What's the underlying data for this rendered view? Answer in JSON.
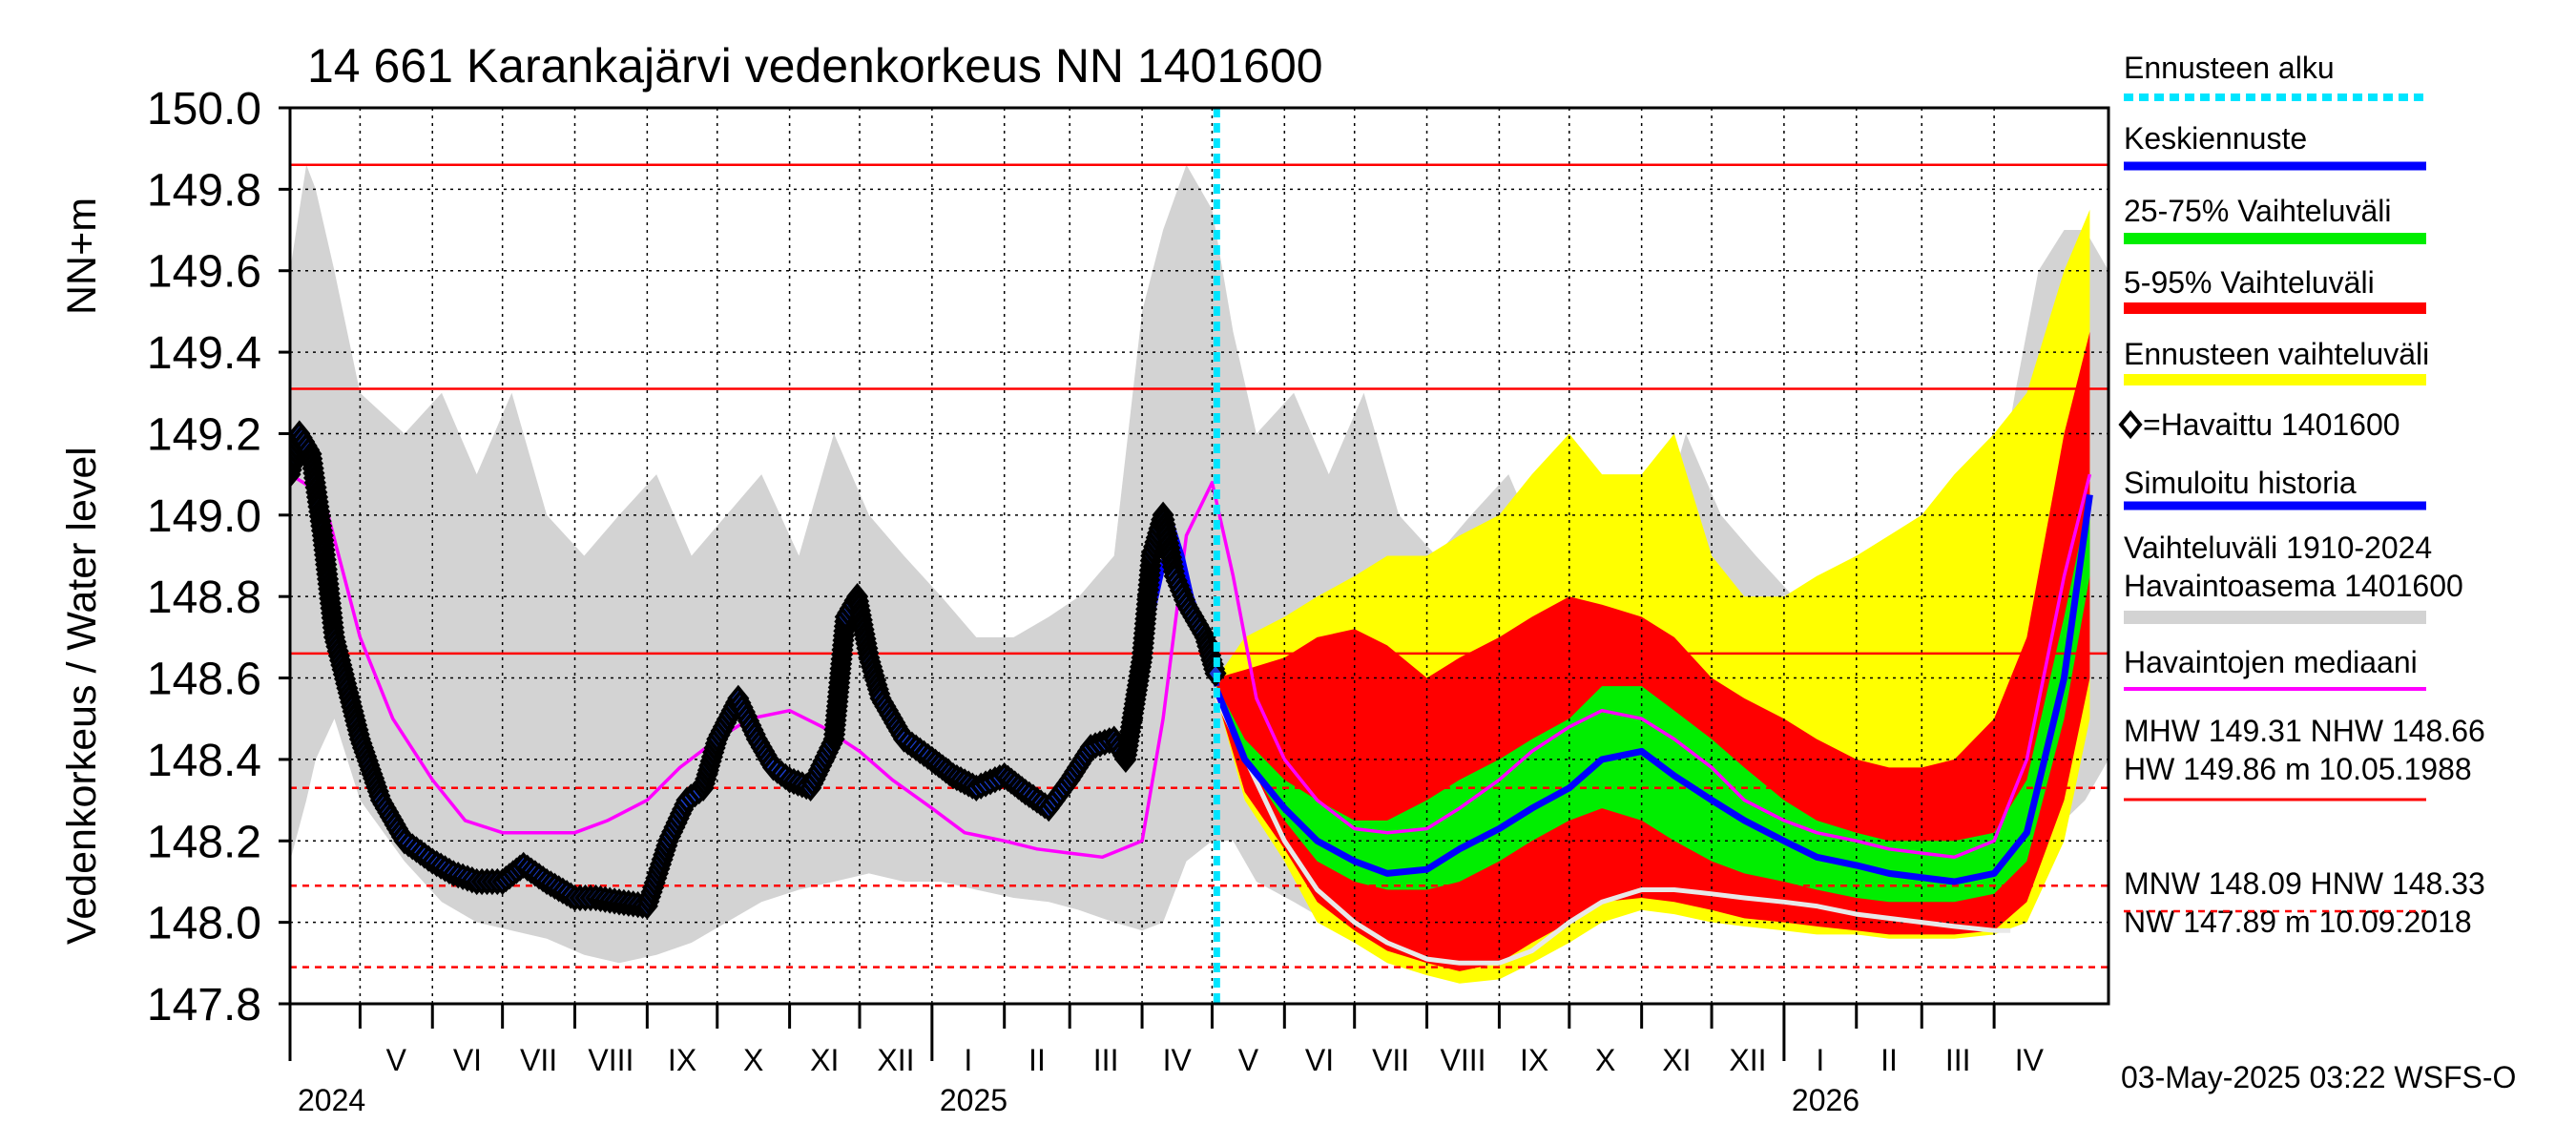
{
  "title": "14 661 Karankajärvi vedenkorkeus NN 1401600",
  "unit_label": "NN+m",
  "ylabel": "Vedenkorkeus / Water level",
  "footer": "03-May-2025 03:22 WSFS-O",
  "colors": {
    "history": "#d3d3d3",
    "p5_95": "#ff0000",
    "p25_75": "#00ee00",
    "forecast_range": "#ffff00",
    "mean": "#0000ff",
    "median": "#ff00ff",
    "forecast_start": "#00e5ff",
    "observed": "#000000",
    "reference": "#ff0000"
  },
  "legend": [
    {
      "id": "forecast-start",
      "label": "Ennusteen alku"
    },
    {
      "id": "mean-forecast",
      "label": "Keskiennuste"
    },
    {
      "id": "range-25-75",
      "label": "25-75% Vaihteluväli"
    },
    {
      "id": "range-5-95",
      "label": "5-95% Vaihteluväli"
    },
    {
      "id": "forecast-range",
      "label": "Ennusteen vaihteluväli"
    },
    {
      "id": "observed",
      "label": "=Havaittu 1401600"
    },
    {
      "id": "simulated",
      "label": "Simuloitu historia"
    },
    {
      "id": "history-range",
      "label": "Vaihteluväli 1910-2024",
      "label2": " Havaintoasema 1401600"
    },
    {
      "id": "median",
      "label": "Havaintojen mediaani"
    },
    {
      "id": "stats1",
      "label": "MHW 149.31 NHW 148.66",
      "label2": "HW 149.86 m 10.05.1988"
    },
    {
      "id": "stats2",
      "label": "MNW 148.09 HNW 148.33",
      "label2": "NW 147.89 m 10.09.2018"
    }
  ],
  "chart_data": {
    "type": "area",
    "ylim": [
      147.8,
      150.0
    ],
    "yticks": [
      147.8,
      148.0,
      148.2,
      148.4,
      148.6,
      148.8,
      149.0,
      149.2,
      149.4,
      149.6,
      149.8,
      150.0
    ],
    "ytick_labels": [
      "147.8",
      "148.0",
      "148.2",
      "148.4",
      "148.6",
      "148.8",
      "149.0",
      "149.2",
      "149.4",
      "149.6",
      "149.8",
      "150.0"
    ],
    "xlim": [
      "2024-04-01",
      "2026-05-20"
    ],
    "months": [
      "V",
      "VI",
      "VII",
      "VIII",
      "IX",
      "X",
      "XI",
      "XII",
      "I",
      "II",
      "III",
      "IV",
      "V",
      "VI",
      "VII",
      "VIII",
      "IX",
      "X",
      "XI",
      "XII",
      "I",
      "II",
      "III",
      "IV"
    ],
    "years": [
      "2024",
      "2025",
      "2026"
    ],
    "forecast_start": "2025-05-03",
    "reference_lines": {
      "solid": [
        149.86,
        149.31,
        148.66
      ],
      "dashed": [
        148.33,
        148.09,
        147.89
      ]
    },
    "history_range": {
      "dates": [
        "2024-04-01",
        "2024-04-08",
        "2024-04-12",
        "2024-04-20",
        "2024-05-01",
        "2024-05-20",
        "2024-06-05",
        "2024-06-20",
        "2024-07-05",
        "2024-07-20",
        "2024-08-05",
        "2024-08-20",
        "2024-09-05",
        "2024-09-20",
        "2024-10-05",
        "2024-10-20",
        "2024-11-05",
        "2024-11-20",
        "2024-12-05",
        "2024-12-20",
        "2025-01-05",
        "2025-01-20",
        "2025-02-05",
        "2025-02-20",
        "2025-03-05",
        "2025-03-20",
        "2025-04-01",
        "2025-04-10",
        "2025-04-20",
        "2025-05-01",
        "2025-05-10",
        "2025-05-20",
        "2025-06-05",
        "2025-06-20",
        "2025-07-05",
        "2025-07-20",
        "2025-08-05",
        "2025-08-20",
        "2025-09-05",
        "2025-09-20",
        "2025-10-05",
        "2025-10-20",
        "2025-11-05",
        "2025-11-20",
        "2025-12-05",
        "2025-12-20",
        "2026-01-05",
        "2026-01-20",
        "2026-02-05",
        "2026-02-20",
        "2026-03-05",
        "2026-03-20",
        "2026-04-01",
        "2026-04-10",
        "2026-04-20",
        "2026-05-01",
        "2026-05-10",
        "2026-05-20"
      ],
      "low": [
        148.15,
        148.3,
        148.4,
        148.5,
        148.3,
        148.15,
        148.05,
        148.0,
        147.98,
        147.96,
        147.92,
        147.9,
        147.92,
        147.95,
        148.0,
        148.05,
        148.08,
        148.1,
        148.12,
        148.1,
        148.1,
        148.08,
        148.06,
        148.05,
        148.03,
        148.0,
        147.98,
        148.0,
        148.15,
        148.2,
        148.2,
        148.1,
        148.05,
        148.0,
        147.98,
        147.96,
        147.92,
        147.9,
        147.92,
        147.95,
        148.0,
        148.05,
        148.08,
        148.1,
        148.12,
        148.1,
        148.1,
        148.08,
        148.06,
        148.05,
        148.03,
        148.0,
        147.98,
        148.0,
        148.15,
        148.25,
        148.3,
        148.4
      ],
      "high": [
        149.6,
        149.86,
        149.8,
        149.6,
        149.3,
        149.2,
        149.3,
        149.1,
        149.3,
        149.0,
        148.9,
        149.0,
        149.1,
        148.9,
        149.0,
        149.1,
        148.9,
        149.2,
        149.0,
        148.9,
        148.8,
        148.7,
        148.7,
        148.75,
        148.8,
        148.9,
        149.5,
        149.7,
        149.86,
        149.75,
        149.45,
        149.2,
        149.3,
        149.1,
        149.3,
        149.0,
        148.9,
        149.0,
        149.1,
        148.9,
        149.0,
        149.1,
        148.9,
        149.2,
        149.0,
        148.9,
        148.8,
        148.7,
        148.7,
        148.75,
        148.8,
        148.9,
        149.0,
        149.3,
        149.6,
        149.7,
        149.7,
        149.6
      ]
    },
    "forecast_range": {
      "dates": [
        "2025-05-03",
        "2025-05-15",
        "2025-06-01",
        "2025-06-15",
        "2025-07-01",
        "2025-07-15",
        "2025-08-01",
        "2025-08-15",
        "2025-09-01",
        "2025-09-15",
        "2025-10-01",
        "2025-10-15",
        "2025-11-01",
        "2025-11-15",
        "2025-12-01",
        "2025-12-15",
        "2026-01-01",
        "2026-01-15",
        "2026-02-01",
        "2026-02-15",
        "2026-03-01",
        "2026-03-15",
        "2026-04-01",
        "2026-04-15",
        "2026-05-01",
        "2026-05-12"
      ],
      "low": [
        148.55,
        148.3,
        148.15,
        148.0,
        147.95,
        147.9,
        147.87,
        147.85,
        147.86,
        147.9,
        147.95,
        148.0,
        148.03,
        148.02,
        148.0,
        147.99,
        147.98,
        147.97,
        147.97,
        147.96,
        147.96,
        147.96,
        147.97,
        148.0,
        148.2,
        148.5
      ],
      "high": [
        148.6,
        148.7,
        148.75,
        148.8,
        148.85,
        148.9,
        148.9,
        148.95,
        149.0,
        149.1,
        149.2,
        149.1,
        149.1,
        149.2,
        148.9,
        148.8,
        148.8,
        148.85,
        148.9,
        148.95,
        149.0,
        149.1,
        149.2,
        149.3,
        149.6,
        149.75
      ]
    },
    "range_5_95": {
      "dates": [
        "2025-05-03",
        "2025-05-15",
        "2025-06-01",
        "2025-06-15",
        "2025-07-01",
        "2025-07-15",
        "2025-08-01",
        "2025-08-15",
        "2025-09-01",
        "2025-09-15",
        "2025-10-01",
        "2025-10-15",
        "2025-11-01",
        "2025-11-15",
        "2025-12-01",
        "2025-12-15",
        "2026-01-01",
        "2026-01-15",
        "2026-02-01",
        "2026-02-15",
        "2026-03-01",
        "2026-03-15",
        "2026-04-01",
        "2026-04-15",
        "2026-05-01",
        "2026-05-12"
      ],
      "low": [
        148.55,
        148.32,
        148.18,
        148.05,
        147.98,
        147.93,
        147.9,
        147.88,
        147.9,
        147.95,
        148.0,
        148.05,
        148.06,
        148.05,
        148.03,
        148.01,
        148.0,
        147.99,
        147.98,
        147.97,
        147.97,
        147.97,
        147.98,
        148.05,
        148.3,
        148.6
      ],
      "high": [
        148.6,
        148.62,
        148.65,
        148.7,
        148.72,
        148.68,
        148.6,
        148.65,
        148.7,
        148.75,
        148.8,
        148.78,
        148.75,
        148.7,
        148.6,
        148.55,
        148.5,
        148.45,
        148.4,
        148.38,
        148.38,
        148.4,
        148.5,
        148.7,
        149.2,
        149.45
      ]
    },
    "range_25_75": {
      "dates": [
        "2025-05-03",
        "2025-05-15",
        "2025-06-01",
        "2025-06-15",
        "2025-07-01",
        "2025-07-15",
        "2025-08-01",
        "2025-08-15",
        "2025-09-01",
        "2025-09-15",
        "2025-10-01",
        "2025-10-15",
        "2025-11-01",
        "2025-11-15",
        "2025-12-01",
        "2025-12-15",
        "2026-01-01",
        "2026-01-15",
        "2026-02-01",
        "2026-02-15",
        "2026-03-01",
        "2026-03-15",
        "2026-04-01",
        "2026-04-15",
        "2026-05-01",
        "2026-05-12"
      ],
      "low": [
        148.56,
        148.4,
        148.25,
        148.15,
        148.1,
        148.08,
        148.08,
        148.1,
        148.15,
        148.2,
        148.25,
        148.28,
        148.25,
        148.2,
        148.15,
        148.12,
        148.1,
        148.08,
        148.06,
        148.05,
        148.05,
        148.05,
        148.07,
        148.15,
        148.5,
        148.85
      ],
      "high": [
        148.58,
        148.45,
        148.35,
        148.3,
        148.25,
        148.25,
        148.3,
        148.35,
        148.4,
        148.45,
        148.5,
        148.58,
        148.58,
        148.52,
        148.45,
        148.38,
        148.3,
        148.25,
        148.22,
        148.2,
        148.2,
        148.2,
        148.22,
        148.35,
        148.75,
        149.05
      ]
    },
    "mean_forecast": {
      "dates": [
        "2025-05-03",
        "2025-05-15",
        "2025-06-01",
        "2025-06-15",
        "2025-07-01",
        "2025-07-15",
        "2025-08-01",
        "2025-08-15",
        "2025-09-01",
        "2025-09-15",
        "2025-10-01",
        "2025-10-15",
        "2025-11-01",
        "2025-11-15",
        "2025-12-01",
        "2025-12-15",
        "2026-01-01",
        "2026-01-15",
        "2026-02-01",
        "2026-02-15",
        "2026-03-01",
        "2026-03-15",
        "2026-04-01",
        "2026-04-15",
        "2026-05-01",
        "2026-05-12"
      ],
      "values": [
        148.57,
        148.4,
        148.28,
        148.2,
        148.15,
        148.12,
        148.13,
        148.18,
        148.23,
        148.28,
        148.33,
        148.4,
        148.42,
        148.36,
        148.3,
        148.25,
        148.2,
        148.16,
        148.14,
        148.12,
        148.11,
        148.1,
        148.12,
        148.22,
        148.6,
        149.05
      ]
    },
    "median": {
      "dates": [
        "2024-04-01",
        "2024-04-15",
        "2024-05-01",
        "2024-05-15",
        "2024-06-01",
        "2024-06-15",
        "2024-07-01",
        "2024-07-15",
        "2024-08-01",
        "2024-08-15",
        "2024-09-01",
        "2024-09-15",
        "2024-10-01",
        "2024-10-15",
        "2024-11-01",
        "2024-11-15",
        "2024-12-01",
        "2024-12-15",
        "2025-01-01",
        "2025-01-15",
        "2025-02-01",
        "2025-02-15",
        "2025-03-01",
        "2025-03-15",
        "2025-04-01",
        "2025-04-10",
        "2025-04-20",
        "2025-05-01",
        "2025-05-10",
        "2025-05-20",
        "2025-06-01",
        "2025-06-15",
        "2025-07-01",
        "2025-07-15",
        "2025-08-01",
        "2025-08-15",
        "2025-09-01",
        "2025-09-15",
        "2025-10-01",
        "2025-10-15",
        "2025-11-01",
        "2025-11-15",
        "2025-12-01",
        "2025-12-15",
        "2026-01-01",
        "2026-01-15",
        "2026-02-01",
        "2026-02-15",
        "2026-03-01",
        "2026-03-15",
        "2026-04-01",
        "2026-04-15",
        "2026-05-01",
        "2026-05-12"
      ],
      "values": [
        149.1,
        149.05,
        148.7,
        148.5,
        148.35,
        148.25,
        148.22,
        148.22,
        148.22,
        148.25,
        148.3,
        148.38,
        148.45,
        148.5,
        148.52,
        148.48,
        148.42,
        148.35,
        148.28,
        148.22,
        148.2,
        148.18,
        148.17,
        148.16,
        148.2,
        148.5,
        148.95,
        149.08,
        148.85,
        148.55,
        148.4,
        148.3,
        148.23,
        148.22,
        148.23,
        148.28,
        148.35,
        148.42,
        148.48,
        148.52,
        148.5,
        148.45,
        148.38,
        148.3,
        148.25,
        148.22,
        148.2,
        148.18,
        148.17,
        148.16,
        148.2,
        148.4,
        148.85,
        149.1
      ]
    },
    "simulated": {
      "dates": [
        "2025-03-25",
        "2025-04-01",
        "2025-04-05",
        "2025-04-10",
        "2025-04-14",
        "2025-04-18",
        "2025-04-22",
        "2025-04-28",
        "2025-05-03"
      ],
      "values": [
        148.45,
        148.6,
        148.75,
        148.88,
        148.97,
        148.9,
        148.8,
        148.7,
        148.58
      ]
    },
    "min_trace": {
      "dates": [
        "2025-05-03",
        "2025-06-01",
        "2025-06-15",
        "2025-07-01",
        "2025-07-15",
        "2025-08-01",
        "2025-08-15",
        "2025-09-01",
        "2025-09-15",
        "2025-10-01",
        "2025-10-15",
        "2025-11-01",
        "2025-11-15",
        "2025-12-01",
        "2025-12-15",
        "2026-01-01",
        "2026-01-15",
        "2026-02-01",
        "2026-02-15",
        "2026-03-01",
        "2026-03-15",
        "2026-04-01",
        "2026-04-08"
      ],
      "values": [
        148.55,
        148.2,
        148.08,
        148.0,
        147.95,
        147.91,
        147.9,
        147.9,
        147.93,
        148.0,
        148.05,
        148.08,
        148.08,
        148.07,
        148.06,
        148.05,
        148.04,
        148.02,
        148.01,
        148.0,
        147.99,
        147.98,
        147.98
      ]
    },
    "observed": {
      "dates": [
        "2024-04-01",
        "2024-04-05",
        "2024-04-10",
        "2024-04-15",
        "2024-04-20",
        "2024-05-01",
        "2024-05-10",
        "2024-05-20",
        "2024-06-01",
        "2024-06-10",
        "2024-06-20",
        "2024-07-01",
        "2024-07-10",
        "2024-07-20",
        "2024-08-01",
        "2024-08-10",
        "2024-08-20",
        "2024-09-01",
        "2024-09-10",
        "2024-09-18",
        "2024-09-25",
        "2024-10-01",
        "2024-10-10",
        "2024-10-18",
        "2024-10-25",
        "2024-11-01",
        "2024-11-10",
        "2024-11-20",
        "2024-11-25",
        "2024-11-30",
        "2024-12-05",
        "2024-12-10",
        "2024-12-20",
        "2025-01-01",
        "2025-01-10",
        "2025-01-20",
        "2025-02-01",
        "2025-02-10",
        "2025-02-20",
        "2025-03-01",
        "2025-03-10",
        "2025-03-20",
        "2025-03-25",
        "2025-04-01",
        "2025-04-05",
        "2025-04-10",
        "2025-04-15",
        "2025-04-20",
        "2025-04-28",
        "2025-05-03"
      ],
      "values": [
        149.1,
        149.2,
        149.15,
        148.95,
        148.7,
        148.45,
        148.3,
        148.2,
        148.15,
        148.12,
        148.1,
        148.1,
        148.14,
        148.1,
        148.06,
        148.06,
        148.05,
        148.04,
        148.2,
        148.3,
        148.33,
        148.45,
        148.55,
        148.45,
        148.38,
        148.35,
        148.33,
        148.45,
        148.75,
        148.8,
        148.65,
        148.55,
        148.45,
        148.4,
        148.36,
        148.33,
        148.36,
        148.32,
        148.28,
        148.35,
        148.43,
        148.45,
        148.4,
        148.65,
        148.9,
        149.0,
        148.85,
        148.78,
        148.7,
        148.6
      ]
    }
  }
}
